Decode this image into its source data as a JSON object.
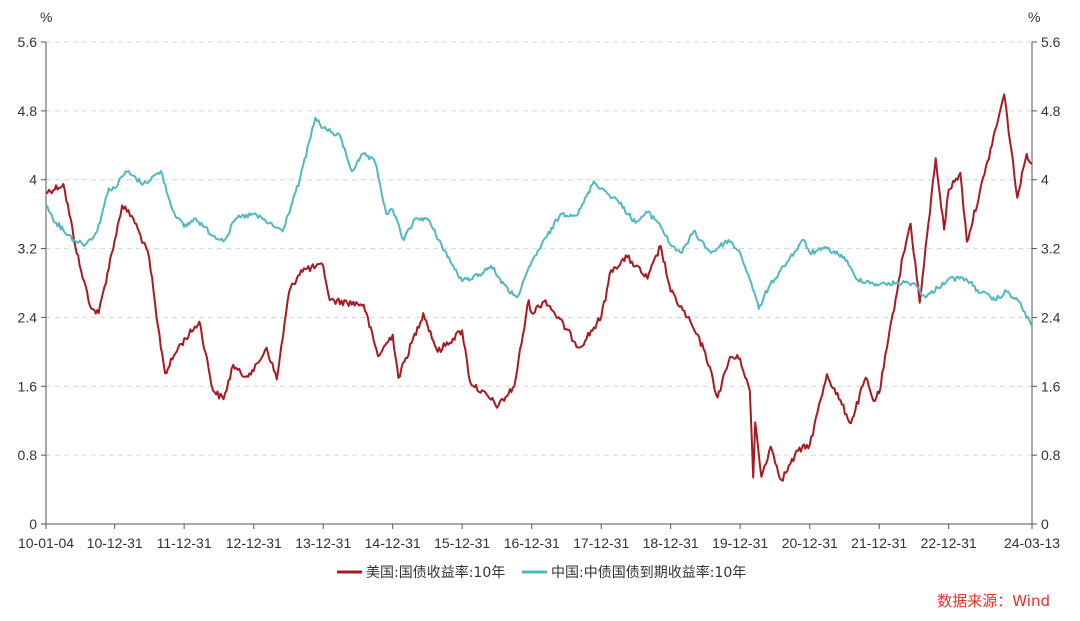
{
  "chart_data": {
    "type": "line",
    "x_unit": "date",
    "x_range": [
      "2010-01-04",
      "2024-03-13"
    ],
    "x_tick_labels": [
      "10-01-04",
      "10-12-31",
      "11-12-31",
      "12-12-31",
      "13-12-31",
      "14-12-31",
      "15-12-31",
      "16-12-31",
      "17-12-31",
      "18-12-31",
      "19-12-31",
      "20-12-31",
      "21-12-31",
      "22-12-31",
      "24-03-13"
    ],
    "y_left_label": "%",
    "y_right_label": "%",
    "ylim": [
      0,
      5.6
    ],
    "y_ticks": [
      "0",
      "0.8",
      "1.6",
      "2.4",
      "3.2",
      "4",
      "4.8",
      "5.6"
    ],
    "grid": "horizontal-dashed",
    "legend_position": "bottom",
    "series": [
      {
        "name": "美国:国债收益率:10年",
        "color": "#a81a22",
        "points": [
          [
            "2010-01-04",
            3.85
          ],
          [
            "2010-04-05",
            3.95
          ],
          [
            "2010-06-30",
            3.0
          ],
          [
            "2010-08-31",
            2.5
          ],
          [
            "2010-10-08",
            2.45
          ],
          [
            "2010-12-31",
            3.3
          ],
          [
            "2011-02-08",
            3.7
          ],
          [
            "2011-04-08",
            3.55
          ],
          [
            "2011-06-30",
            3.1
          ],
          [
            "2011-08-08",
            2.4
          ],
          [
            "2011-09-22",
            1.75
          ],
          [
            "2011-11-30",
            2.05
          ],
          [
            "2012-03-20",
            2.35
          ],
          [
            "2012-05-31",
            1.55
          ],
          [
            "2012-07-25",
            1.45
          ],
          [
            "2012-09-14",
            1.85
          ],
          [
            "2012-10-31",
            1.72
          ],
          [
            "2012-12-31",
            1.78
          ],
          [
            "2013-03-08",
            2.05
          ],
          [
            "2013-05-01",
            1.68
          ],
          [
            "2013-07-05",
            2.7
          ],
          [
            "2013-09-05",
            2.95
          ],
          [
            "2013-12-31",
            3.0
          ],
          [
            "2014-02-03",
            2.6
          ],
          [
            "2014-07-31",
            2.55
          ],
          [
            "2014-10-15",
            1.95
          ],
          [
            "2014-12-31",
            2.2
          ],
          [
            "2015-01-30",
            1.7
          ],
          [
            "2015-06-10",
            2.45
          ],
          [
            "2015-08-24",
            2.0
          ],
          [
            "2015-12-31",
            2.25
          ],
          [
            "2016-02-11",
            1.65
          ],
          [
            "2016-07-08",
            1.37
          ],
          [
            "2016-09-30",
            1.6
          ],
          [
            "2016-12-15",
            2.6
          ],
          [
            "2016-12-31",
            2.45
          ],
          [
            "2017-03-13",
            2.6
          ],
          [
            "2017-09-07",
            2.05
          ],
          [
            "2017-12-31",
            2.4
          ],
          [
            "2018-02-21",
            2.95
          ],
          [
            "2018-05-17",
            3.1
          ],
          [
            "2018-08-31",
            2.85
          ],
          [
            "2018-11-08",
            3.23
          ],
          [
            "2018-12-31",
            2.7
          ],
          [
            "2019-03-29",
            2.4
          ],
          [
            "2019-06-30",
            2.0
          ],
          [
            "2019-09-03",
            1.47
          ],
          [
            "2019-11-08",
            1.94
          ],
          [
            "2019-12-31",
            1.92
          ],
          [
            "2020-02-20",
            1.55
          ],
          [
            "2020-03-09",
            0.54
          ],
          [
            "2020-03-19",
            1.18
          ],
          [
            "2020-04-21",
            0.55
          ],
          [
            "2020-06-08",
            0.9
          ],
          [
            "2020-08-04",
            0.51
          ],
          [
            "2020-10-30",
            0.85
          ],
          [
            "2020-12-31",
            0.92
          ],
          [
            "2021-03-31",
            1.74
          ],
          [
            "2021-08-04",
            1.17
          ],
          [
            "2021-10-21",
            1.7
          ],
          [
            "2021-12-01",
            1.43
          ],
          [
            "2021-12-31",
            1.52
          ],
          [
            "2022-05-06",
            3.13
          ],
          [
            "2022-06-14",
            3.49
          ],
          [
            "2022-08-01",
            2.57
          ],
          [
            "2022-10-24",
            4.25
          ],
          [
            "2022-12-07",
            3.42
          ],
          [
            "2022-12-31",
            3.88
          ],
          [
            "2023-03-02",
            4.08
          ],
          [
            "2023-04-06",
            3.28
          ],
          [
            "2023-07-07",
            4.06
          ],
          [
            "2023-10-19",
            4.99
          ],
          [
            "2023-12-27",
            3.79
          ],
          [
            "2024-02-14",
            4.3
          ],
          [
            "2024-03-13",
            4.19
          ]
        ]
      },
      {
        "name": "中国:中债国债到期收益率:10年",
        "color": "#52b9bf",
        "points": [
          [
            "2010-01-04",
            3.7
          ],
          [
            "2010-02-26",
            3.5
          ],
          [
            "2010-05-31",
            3.3
          ],
          [
            "2010-07-30",
            3.25
          ],
          [
            "2010-09-30",
            3.4
          ],
          [
            "2010-11-30",
            3.9
          ],
          [
            "2010-12-31",
            3.9
          ],
          [
            "2011-02-28",
            4.1
          ],
          [
            "2011-05-31",
            3.95
          ],
          [
            "2011-08-31",
            4.1
          ],
          [
            "2011-10-31",
            3.65
          ],
          [
            "2011-12-31",
            3.45
          ],
          [
            "2012-02-29",
            3.55
          ],
          [
            "2012-05-31",
            3.35
          ],
          [
            "2012-07-31",
            3.3
          ],
          [
            "2012-09-28",
            3.55
          ],
          [
            "2012-12-31",
            3.6
          ],
          [
            "2013-05-31",
            3.4
          ],
          [
            "2013-08-30",
            4.0
          ],
          [
            "2013-11-20",
            4.72
          ],
          [
            "2013-12-31",
            4.6
          ],
          [
            "2014-03-31",
            4.5
          ],
          [
            "2014-05-30",
            4.1
          ],
          [
            "2014-07-31",
            4.3
          ],
          [
            "2014-09-30",
            4.2
          ],
          [
            "2014-11-28",
            3.6
          ],
          [
            "2014-12-31",
            3.65
          ],
          [
            "2015-02-27",
            3.3
          ],
          [
            "2015-04-30",
            3.55
          ],
          [
            "2015-06-30",
            3.55
          ],
          [
            "2015-08-31",
            3.3
          ],
          [
            "2015-10-30",
            3.05
          ],
          [
            "2015-12-31",
            2.82
          ],
          [
            "2016-03-31",
            2.9
          ],
          [
            "2016-05-31",
            3.0
          ],
          [
            "2016-08-31",
            2.7
          ],
          [
            "2016-10-21",
            2.65
          ],
          [
            "2016-12-31",
            3.05
          ],
          [
            "2017-05-31",
            3.6
          ],
          [
            "2017-08-31",
            3.6
          ],
          [
            "2017-11-22",
            3.98
          ],
          [
            "2017-12-31",
            3.9
          ],
          [
            "2018-03-30",
            3.75
          ],
          [
            "2018-06-29",
            3.5
          ],
          [
            "2018-08-31",
            3.62
          ],
          [
            "2018-10-31",
            3.5
          ],
          [
            "2018-12-28",
            3.25
          ],
          [
            "2019-02-28",
            3.15
          ],
          [
            "2019-04-30",
            3.4
          ],
          [
            "2019-07-31",
            3.15
          ],
          [
            "2019-10-31",
            3.3
          ],
          [
            "2019-12-31",
            3.15
          ],
          [
            "2020-02-28",
            2.8
          ],
          [
            "2020-04-07",
            2.5
          ],
          [
            "2020-05-29",
            2.75
          ],
          [
            "2020-07-31",
            2.95
          ],
          [
            "2020-11-30",
            3.3
          ],
          [
            "2020-12-31",
            3.15
          ],
          [
            "2021-03-31",
            3.2
          ],
          [
            "2021-06-30",
            3.1
          ],
          [
            "2021-08-31",
            2.85
          ],
          [
            "2021-12-31",
            2.78
          ],
          [
            "2022-03-31",
            2.8
          ],
          [
            "2022-06-30",
            2.8
          ],
          [
            "2022-08-31",
            2.63
          ],
          [
            "2022-12-31",
            2.85
          ],
          [
            "2023-03-31",
            2.85
          ],
          [
            "2023-05-31",
            2.72
          ],
          [
            "2023-08-31",
            2.6
          ],
          [
            "2023-10-31",
            2.7
          ],
          [
            "2023-12-29",
            2.6
          ],
          [
            "2024-03-13",
            2.3
          ]
        ]
      }
    ]
  },
  "source": "数据来源：Wind"
}
